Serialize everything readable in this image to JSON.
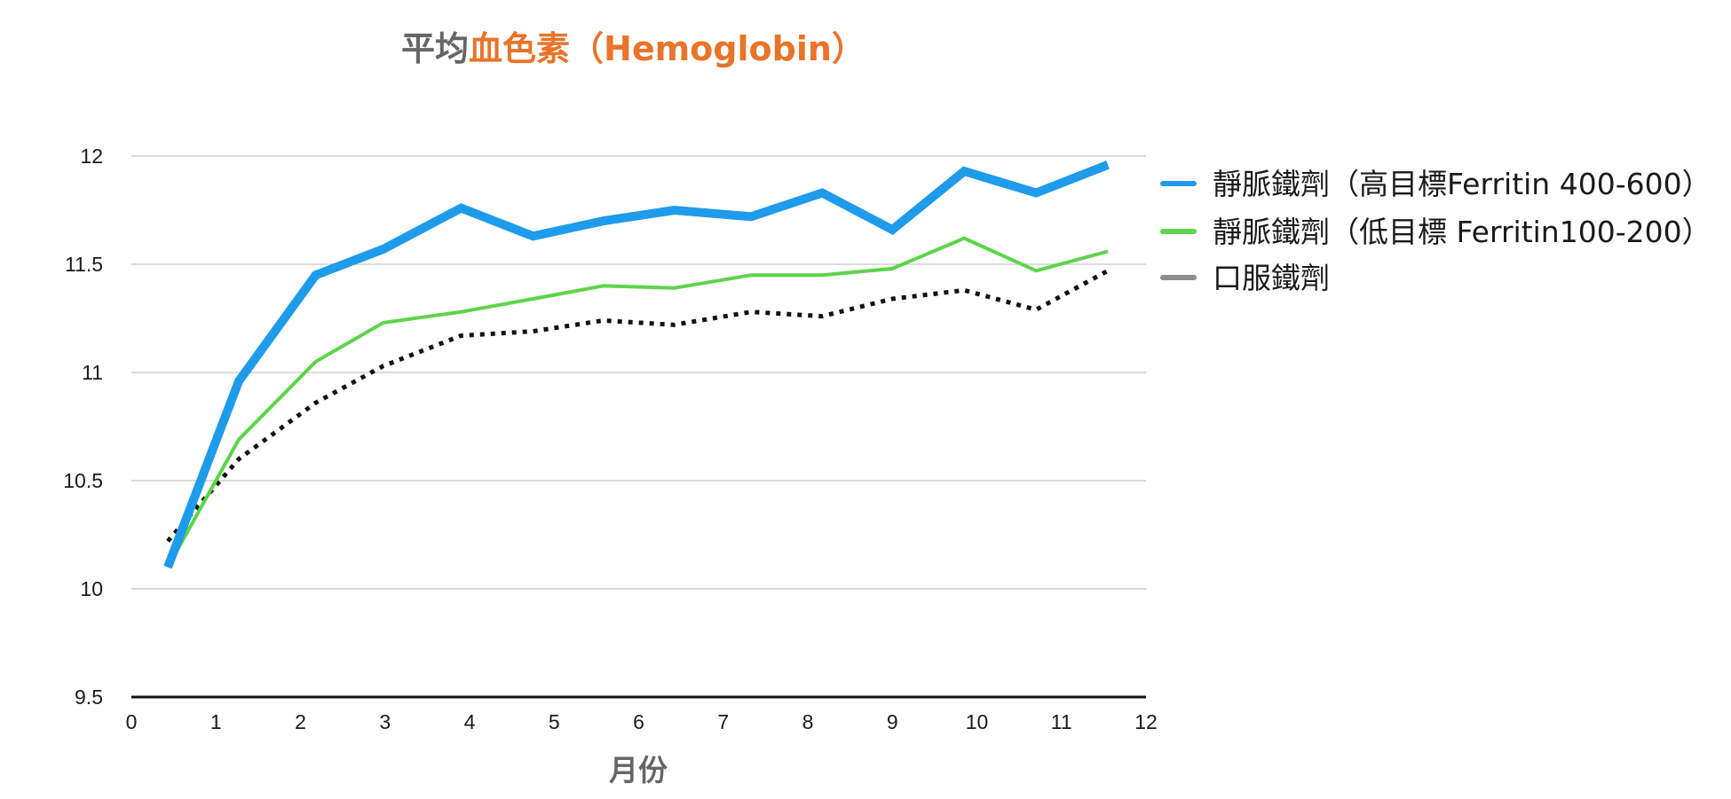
{
  "chart_data": {
    "type": "line",
    "title_parts": [
      {
        "text": "平均",
        "color": "#666666"
      },
      {
        "text": "血色素（Hemoglobin）",
        "color": "#E8742A"
      }
    ],
    "xlabel": "月份",
    "ylabel": "",
    "xlim": [
      0,
      12
    ],
    "ylim": [
      9.5,
      12
    ],
    "x_ticks": [
      0,
      1,
      2,
      3,
      4,
      5,
      6,
      7,
      8,
      9,
      10,
      11,
      12
    ],
    "y_ticks": [
      "9.5",
      "10",
      "10.5",
      "11",
      "11.5",
      "12"
    ],
    "grid": true,
    "legend_position": "right",
    "series": [
      {
        "name": "靜脈鐵劑（高目標Ferritin 400-600）",
        "color": "#1E9BEB",
        "style": "thick",
        "x": [
          0.43,
          1.27,
          2.18,
          2.98,
          3.9,
          4.75,
          5.58,
          6.42,
          7.33,
          8.17,
          9.0,
          9.85,
          10.7,
          11.55
        ],
        "values": [
          10.1,
          10.96,
          11.45,
          11.57,
          11.76,
          11.63,
          11.7,
          11.75,
          11.72,
          11.83,
          11.66,
          11.93,
          11.83,
          11.96
        ]
      },
      {
        "name": "靜脈鐵劑（低目標 Ferritin100-200）",
        "color": "#5DD44A",
        "style": "solid",
        "x": [
          0.43,
          1.27,
          2.18,
          2.98,
          3.9,
          4.75,
          5.58,
          6.42,
          7.33,
          8.17,
          9.0,
          9.85,
          10.7,
          11.55
        ],
        "values": [
          10.1,
          10.69,
          11.05,
          11.23,
          11.28,
          11.34,
          11.4,
          11.39,
          11.45,
          11.45,
          11.48,
          11.62,
          11.47,
          11.56
        ]
      },
      {
        "name": "口服鐵劑",
        "color": "#111111",
        "legend_color": "#8C8C8C",
        "style": "dotted",
        "x": [
          0.43,
          1.27,
          2.18,
          2.98,
          3.9,
          4.75,
          5.58,
          6.42,
          7.33,
          8.17,
          9.0,
          9.85,
          10.7,
          11.55
        ],
        "values": [
          10.22,
          10.6,
          10.86,
          11.03,
          11.17,
          11.19,
          11.24,
          11.22,
          11.28,
          11.26,
          11.34,
          11.38,
          11.29,
          11.47
        ]
      }
    ]
  }
}
